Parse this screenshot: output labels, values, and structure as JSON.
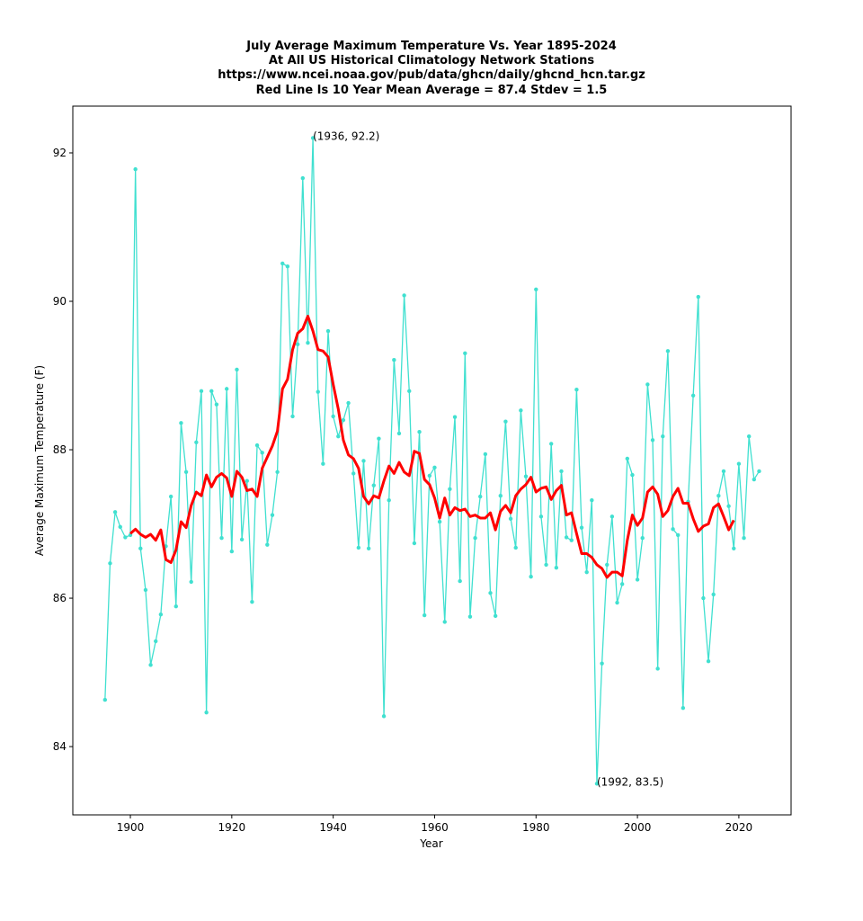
{
  "chart_data": {
    "type": "line",
    "title": [
      "July Average Maximum Temperature Vs. Year 1895-2024",
      "At All US Historical Climatology Network Stations",
      "https://www.ncei.noaa.gov/pub/data/ghcn/daily/ghcnd_hcn.tar.gz",
      "Red Line Is 10 Year Mean  Average = 87.4 Stdev = 1.5"
    ],
    "xlabel": "Year",
    "ylabel": "Average Maximum Temperature (F)",
    "x": [
      1895,
      1896,
      1897,
      1898,
      1899,
      1900,
      1901,
      1902,
      1903,
      1904,
      1905,
      1906,
      1907,
      1908,
      1909,
      1910,
      1911,
      1912,
      1913,
      1914,
      1915,
      1916,
      1917,
      1918,
      1919,
      1920,
      1921,
      1922,
      1923,
      1924,
      1925,
      1926,
      1927,
      1928,
      1929,
      1930,
      1931,
      1932,
      1933,
      1934,
      1935,
      1936,
      1937,
      1938,
      1939,
      1940,
      1941,
      1942,
      1943,
      1944,
      1945,
      1946,
      1947,
      1948,
      1949,
      1950,
      1951,
      1952,
      1953,
      1954,
      1955,
      1956,
      1957,
      1958,
      1959,
      1960,
      1961,
      1962,
      1963,
      1964,
      1965,
      1966,
      1967,
      1968,
      1969,
      1970,
      1971,
      1972,
      1973,
      1974,
      1975,
      1976,
      1977,
      1978,
      1979,
      1980,
      1981,
      1982,
      1983,
      1984,
      1985,
      1986,
      1987,
      1988,
      1989,
      1990,
      1991,
      1992,
      1993,
      1994,
      1995,
      1996,
      1997,
      1998,
      1999,
      2000,
      2001,
      2002,
      2003,
      2004,
      2005,
      2006,
      2007,
      2008,
      2009,
      2010,
      2011,
      2012,
      2013,
      2014,
      2015,
      2016,
      2017,
      2018,
      2019,
      2020,
      2021,
      2022,
      2023,
      2024
    ],
    "series": [
      {
        "color": "#40e0d0",
        "markers": true,
        "width": 1.3,
        "values": [
          84.63,
          86.47,
          87.16,
          86.96,
          86.82,
          86.85,
          91.78,
          86.67,
          86.11,
          85.1,
          85.42,
          85.78,
          86.7,
          87.37,
          85.89,
          88.36,
          87.7,
          86.22,
          88.1,
          88.79,
          84.46,
          88.79,
          88.61,
          86.81,
          88.82,
          86.63,
          89.08,
          86.79,
          87.58,
          85.95,
          88.06,
          87.96,
          86.72,
          87.12,
          87.7,
          90.51,
          90.47,
          88.45,
          89.42,
          91.66,
          89.44,
          92.2,
          88.78,
          87.81,
          89.6,
          88.45,
          88.18,
          88.4,
          88.63,
          87.68,
          86.68,
          87.85,
          86.67,
          87.52,
          88.15,
          84.41,
          87.32,
          89.21,
          88.22,
          90.08,
          88.79,
          86.74,
          88.24,
          85.77,
          87.65,
          87.76,
          87.03,
          85.68,
          87.47,
          88.44,
          86.23,
          89.3,
          85.75,
          86.81,
          87.37,
          87.94,
          86.07,
          85.76,
          87.38,
          88.38,
          87.07,
          86.68,
          88.53,
          87.64,
          86.29,
          90.16,
          87.1,
          86.45,
          88.08,
          86.41,
          87.71,
          86.82,
          86.78,
          88.81,
          86.95,
          86.35,
          87.32,
          83.5,
          85.12,
          86.45,
          87.1,
          85.94,
          86.19,
          87.88,
          87.66,
          86.25,
          86.81,
          88.88,
          88.13,
          85.05,
          88.18,
          89.33,
          86.93,
          86.85,
          84.52,
          87.3,
          88.73,
          90.06,
          86.0,
          85.15,
          86.05,
          87.38,
          87.71,
          87.24,
          86.67,
          87.81,
          86.81,
          88.18,
          87.6,
          87.71
        ]
      },
      {
        "color": "#ff0000",
        "markers": false,
        "width": 3,
        "values": [
          null,
          null,
          null,
          null,
          null,
          86.87,
          86.93,
          86.86,
          86.82,
          86.86,
          86.78,
          86.92,
          86.52,
          86.48,
          86.65,
          87.03,
          86.95,
          87.25,
          87.43,
          87.38,
          87.66,
          87.5,
          87.63,
          87.68,
          87.62,
          87.37,
          87.71,
          87.63,
          87.45,
          87.47,
          87.37,
          87.75,
          87.9,
          88.05,
          88.25,
          88.82,
          88.95,
          89.35,
          89.57,
          89.63,
          89.8,
          89.6,
          89.35,
          89.33,
          89.25,
          88.88,
          88.55,
          88.13,
          87.93,
          87.88,
          87.75,
          87.37,
          87.27,
          87.38,
          87.35,
          87.58,
          87.78,
          87.68,
          87.83,
          87.7,
          87.65,
          87.98,
          87.95,
          87.6,
          87.53,
          87.35,
          87.08,
          87.35,
          87.12,
          87.22,
          87.18,
          87.2,
          87.1,
          87.12,
          87.08,
          87.08,
          87.15,
          86.92,
          87.17,
          87.25,
          87.15,
          87.38,
          87.47,
          87.53,
          87.63,
          87.43,
          87.48,
          87.5,
          87.33,
          87.45,
          87.52,
          87.12,
          87.15,
          86.87,
          86.6,
          86.6,
          86.55,
          86.45,
          86.4,
          86.28,
          86.35,
          86.35,
          86.3,
          86.78,
          87.12,
          86.98,
          87.08,
          87.43,
          87.5,
          87.4,
          87.1,
          87.18,
          87.37,
          87.48,
          87.28,
          87.28,
          87.07,
          86.9,
          86.97,
          87.0,
          87.22,
          87.27,
          87.1,
          86.92,
          87.05,
          null,
          null,
          null,
          null,
          null
        ]
      }
    ],
    "annotations": [
      {
        "text": "(1936, 92.2)",
        "x": 1936,
        "y": 92.2
      },
      {
        "text": "(1992, 83.5)",
        "x": 1992,
        "y": 83.5
      }
    ],
    "xlim": [
      1888.65,
      2030.3
    ],
    "ylim": [
      83.08,
      92.63
    ],
    "xticks": [
      1900,
      1920,
      1940,
      1960,
      1980,
      2000,
      2020
    ],
    "yticks": [
      84,
      86,
      88,
      90,
      92
    ],
    "grid": false
  }
}
